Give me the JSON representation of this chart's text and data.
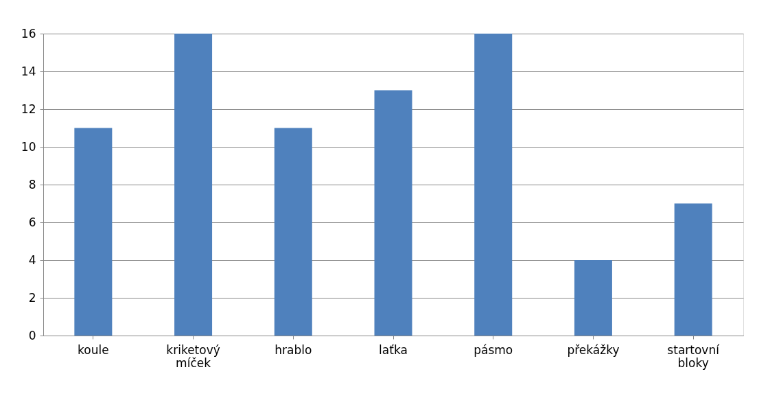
{
  "chart_data": {
    "type": "bar",
    "categories": [
      "koule",
      "kriketový míček",
      "hrablo",
      "laťka",
      "pásmo",
      "překážky",
      "startovní bloky"
    ],
    "values": [
      11,
      16,
      11,
      13,
      16,
      4,
      7
    ],
    "color": "#4f81bd",
    "ylim": [
      0,
      16
    ],
    "yticks": [
      0,
      2,
      4,
      6,
      8,
      10,
      12,
      14,
      16
    ],
    "grid": "y"
  }
}
